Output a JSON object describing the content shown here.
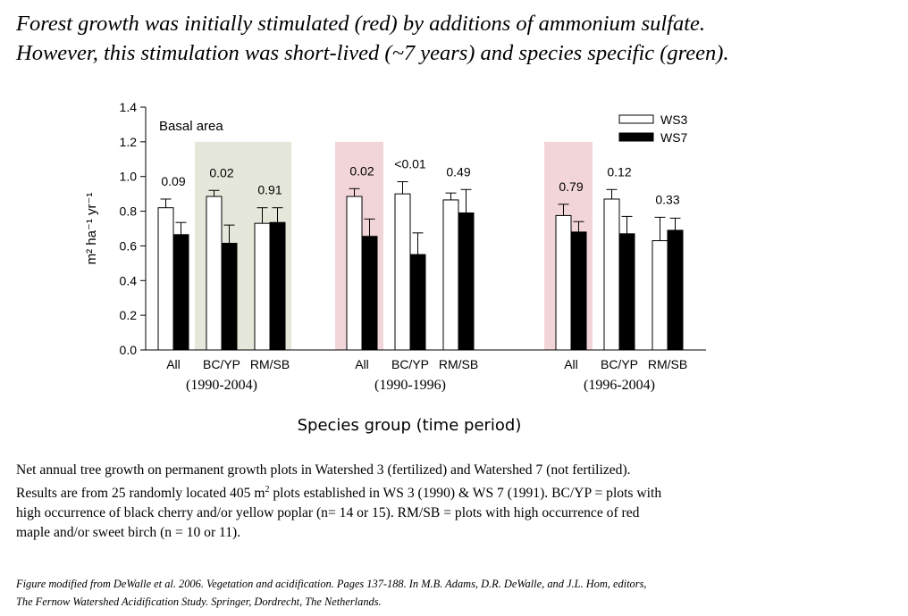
{
  "headline": {
    "line1": "Forest growth was initially stimulated (red) by additions of ammonium sulfate.",
    "line2": "However, this stimulation was short-lived (~7 years) and species specific (green)."
  },
  "colors": {
    "green_highlight": "#e4e7d9",
    "red_highlight": "#f2d5d8",
    "ws3_fill": "#ffffff",
    "ws7_fill": "#000000"
  },
  "chart_data": {
    "type": "bar",
    "panel_label": "Basal area",
    "ylabel": "m² ha⁻¹ yr⁻¹",
    "xlabel": "Species group (time period)",
    "ylim": [
      0,
      1.4
    ],
    "yticks": [
      "0.0",
      "0.2",
      "0.4",
      "0.6",
      "0.8",
      "1.0",
      "1.2",
      "1.4"
    ],
    "legend": {
      "position": "top-right",
      "entries": [
        "WS3",
        "WS7"
      ]
    },
    "groups": [
      {
        "period": "(1990-2004)",
        "categories": [
          {
            "label": "All",
            "ws3": 0.82,
            "ws3_err": 0.05,
            "ws7": 0.665,
            "ws7_err": 0.07,
            "p": "0.09",
            "highlight": "none"
          },
          {
            "label": "BC/YP",
            "ws3": 0.885,
            "ws3_err": 0.035,
            "ws7": 0.615,
            "ws7_err": 0.105,
            "p": "0.02",
            "highlight": "green"
          },
          {
            "label": "RM/SB",
            "ws3": 0.73,
            "ws3_err": 0.09,
            "ws7": 0.735,
            "ws7_err": 0.085,
            "p": "0.91",
            "highlight": "green"
          }
        ]
      },
      {
        "period": "(1990-1996)",
        "categories": [
          {
            "label": "All",
            "ws3": 0.885,
            "ws3_err": 0.045,
            "ws7": 0.655,
            "ws7_err": 0.1,
            "p": "0.02",
            "highlight": "red"
          },
          {
            "label": "BC/YP",
            "ws3": 0.9,
            "ws3_err": 0.07,
            "ws7": 0.55,
            "ws7_err": 0.125,
            "p": "<0.01",
            "highlight": "none"
          },
          {
            "label": "RM/SB",
            "ws3": 0.865,
            "ws3_err": 0.04,
            "ws7": 0.79,
            "ws7_err": 0.135,
            "p": "0.49",
            "highlight": "none"
          }
        ]
      },
      {
        "period": "(1996-2004)",
        "categories": [
          {
            "label": "All",
            "ws3": 0.775,
            "ws3_err": 0.065,
            "ws7": 0.68,
            "ws7_err": 0.06,
            "p": "0.79",
            "highlight": "red"
          },
          {
            "label": "BC/YP",
            "ws3": 0.87,
            "ws3_err": 0.055,
            "ws7": 0.67,
            "ws7_err": 0.1,
            "p": "0.12",
            "highlight": "none"
          },
          {
            "label": "RM/SB",
            "ws3": 0.63,
            "ws3_err": 0.135,
            "ws7": 0.69,
            "ws7_err": 0.07,
            "p": "0.33",
            "highlight": "none"
          }
        ]
      }
    ]
  },
  "caption": {
    "line1": "Net annual tree growth on permanent growth plots in Watershed 3 (fertilized) and Watershed 7 (not fertilized).",
    "line2_a": "Results are from 25 randomly located 405 m",
    "line2_sup": "2",
    "line2_b": " plots established in WS 3 (1990) & WS 7 (1991).  BC/YP = plots with",
    "line3": "high occurrence of black cherry and/or yellow poplar (n= 14 or 15).  RM/SB = plots with high occurrence of red",
    "line4": "maple and/or sweet birch (n = 10 or 11)."
  },
  "source": {
    "line1": "Figure modified from DeWalle et al. 2006. Vegetation and acidification. Pages 137-188. In M.B. Adams, D.R. DeWalle, and J.L. Hom, editors,",
    "line2": "The Fernow Watershed Acidification Study.  Springer, Dordrecht, The Netherlands."
  }
}
